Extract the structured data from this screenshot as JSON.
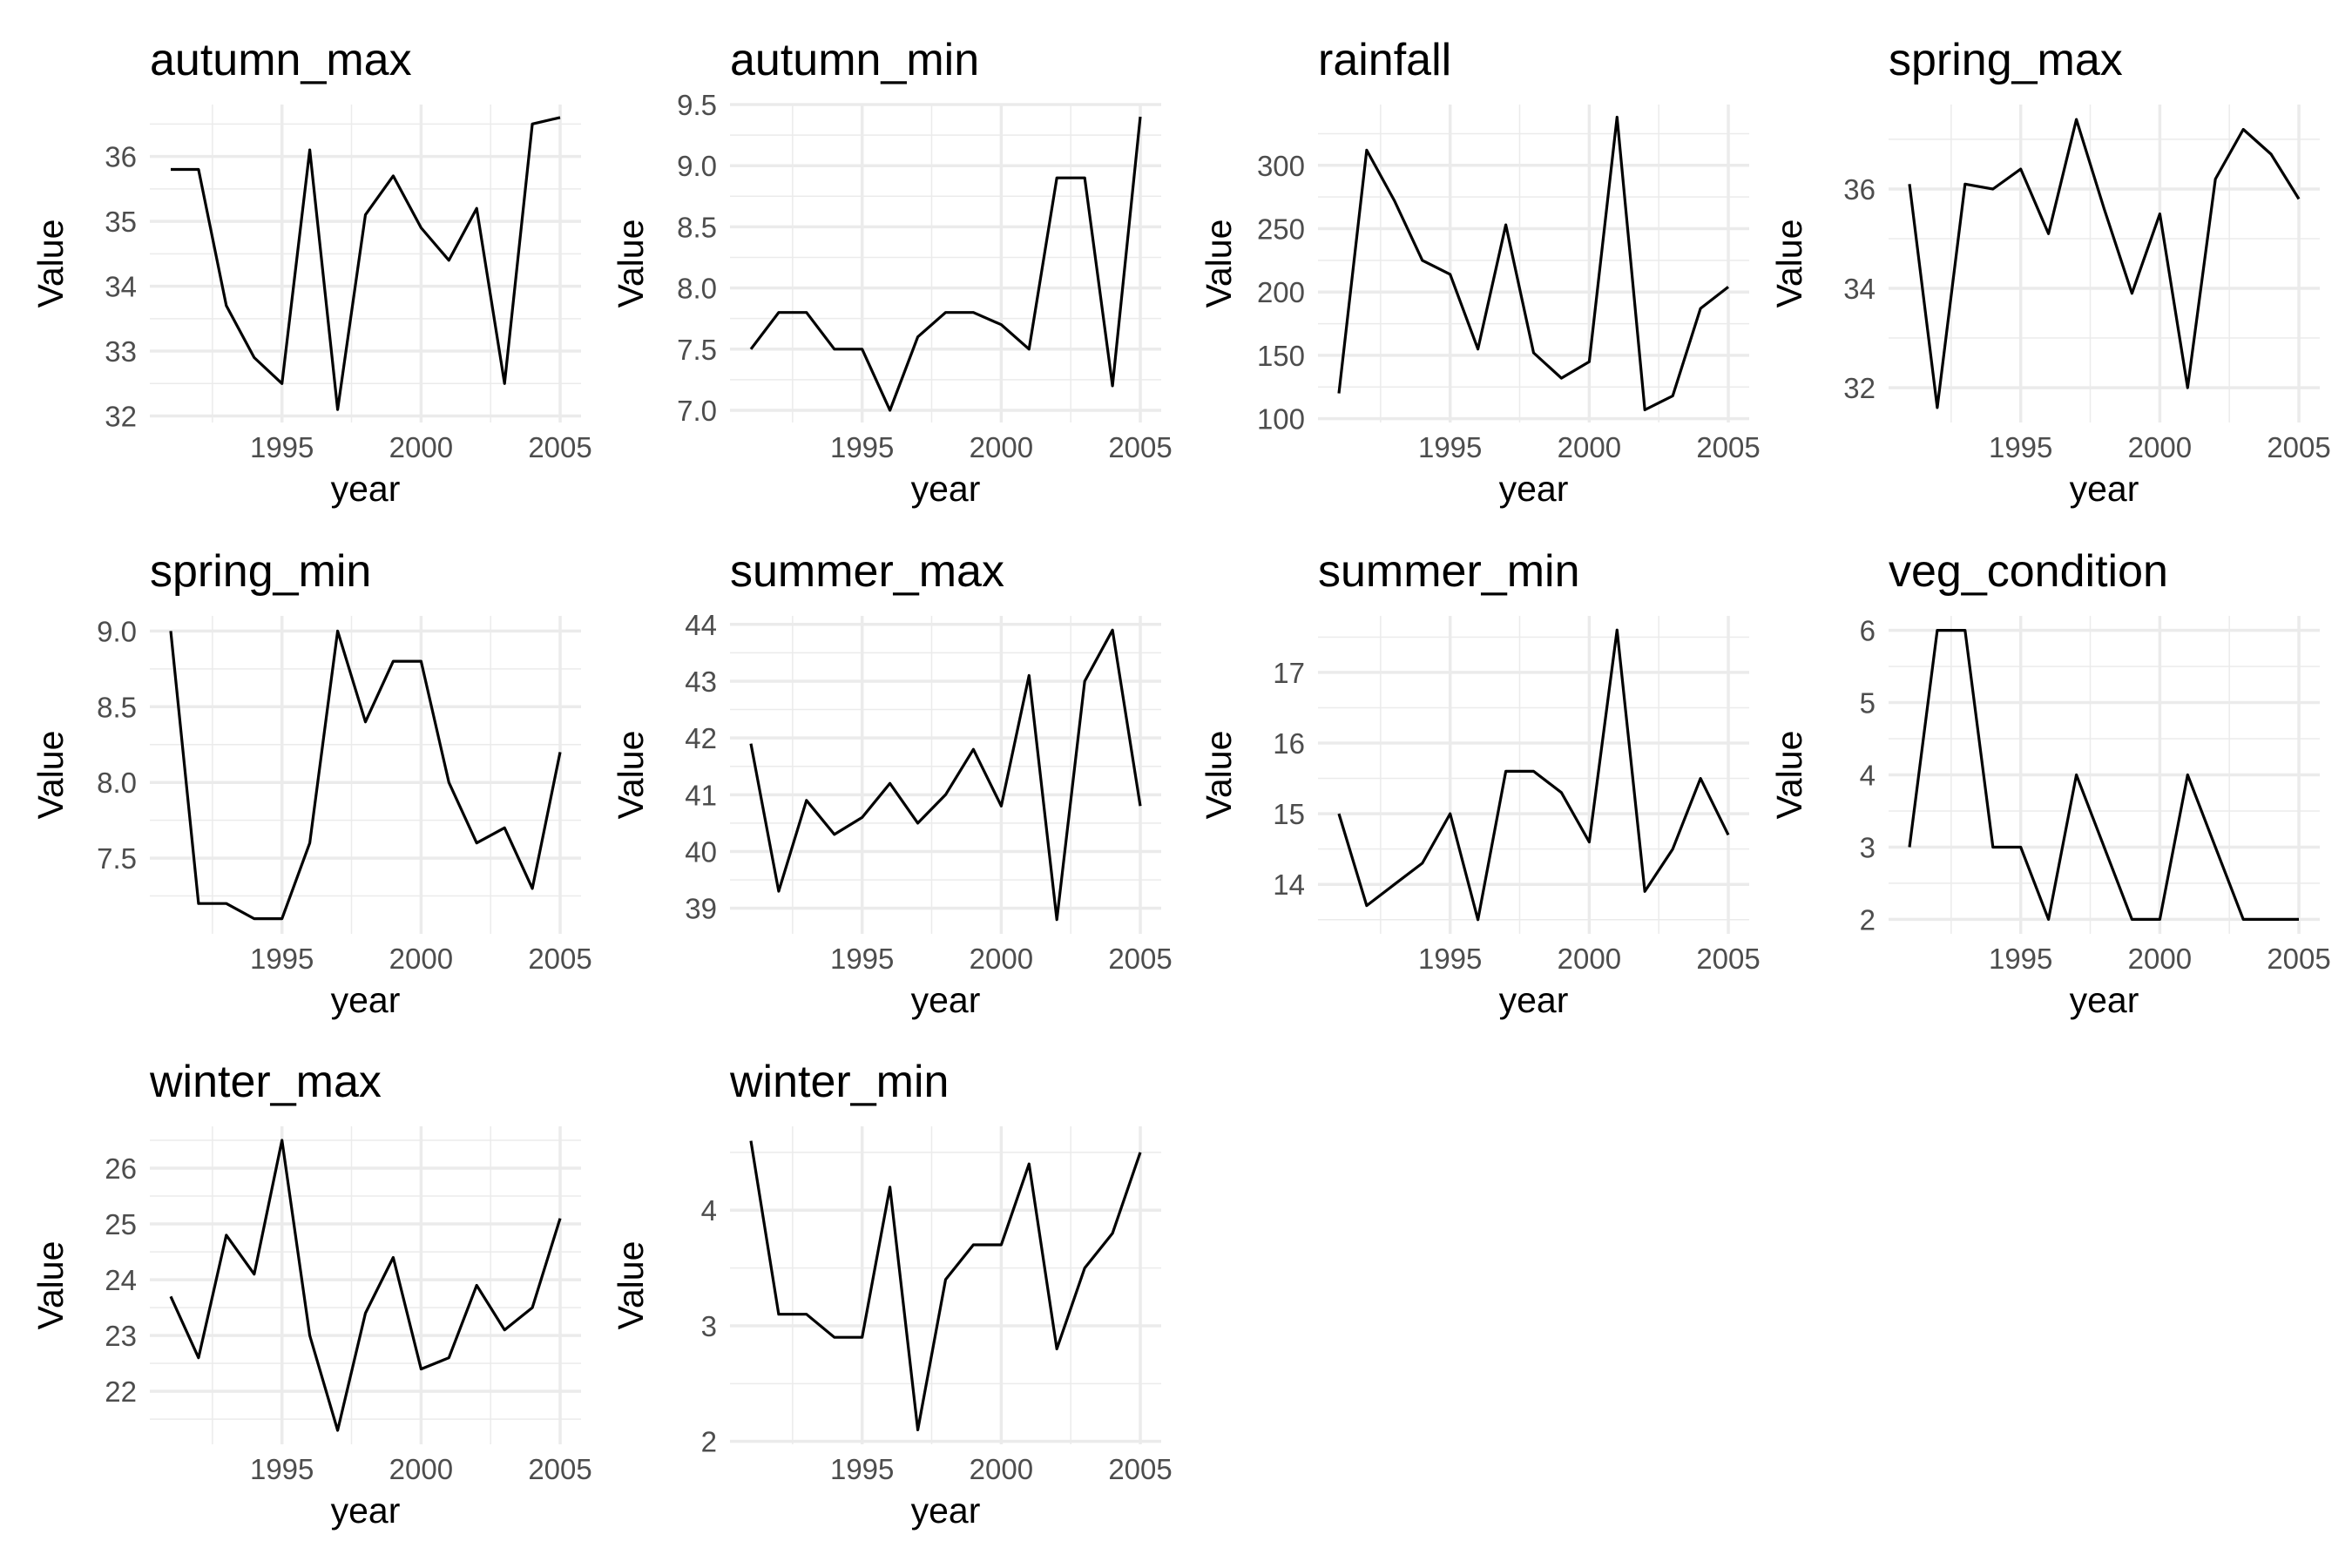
{
  "chart_data": {
    "type": "line",
    "x": [
      1991,
      1992,
      1993,
      1994,
      1995,
      1996,
      1997,
      1998,
      1999,
      2000,
      2001,
      2002,
      2003,
      2004,
      2005
    ],
    "xlabel": "year",
    "ylabel": "Value",
    "xticks": [
      1995,
      2000,
      2005
    ],
    "xlim": [
      1990.25,
      2005.75
    ],
    "grid": true,
    "line_color": "#000000",
    "grid_color": "#ebebeb",
    "panels": [
      {
        "title": "autumn_max",
        "values": [
          35.8,
          35.8,
          33.7,
          32.9,
          32.5,
          36.1,
          32.1,
          35.1,
          35.7,
          34.9,
          34.4,
          35.2,
          32.5,
          36.5,
          36.6
        ],
        "ylim": [
          31.9,
          36.8
        ],
        "yticks": [
          32,
          33,
          34,
          35,
          36
        ],
        "ytick_labels": [
          "32",
          "33",
          "34",
          "35",
          "36"
        ]
      },
      {
        "title": "autumn_min",
        "values": [
          7.5,
          7.8,
          7.8,
          7.5,
          7.5,
          7.0,
          7.6,
          7.8,
          7.8,
          7.7,
          7.5,
          8.9,
          8.9,
          7.2,
          9.4
        ],
        "ylim": [
          6.9,
          9.5
        ],
        "yticks": [
          7.0,
          7.5,
          8.0,
          8.5,
          9.0,
          9.5
        ],
        "ytick_labels": [
          "7.0",
          "7.5",
          "8.0",
          "8.5",
          "9.0",
          "9.5"
        ]
      },
      {
        "title": "rainfall",
        "values": [
          120,
          312,
          272,
          225,
          214,
          155,
          253,
          152,
          132,
          145,
          338,
          107,
          118,
          187,
          204
        ],
        "ylim": [
          97,
          348
        ],
        "yticks": [
          100,
          150,
          200,
          250,
          300
        ],
        "ytick_labels": [
          "100",
          "150",
          "200",
          "250",
          "300"
        ]
      },
      {
        "title": "spring_max",
        "values": [
          36.1,
          31.6,
          36.1,
          36.0,
          36.4,
          35.1,
          37.4,
          35.6,
          33.9,
          35.5,
          32.0,
          36.2,
          37.2,
          36.7,
          35.8
        ],
        "ylim": [
          31.3,
          37.7
        ],
        "yticks": [
          32,
          34,
          36
        ],
        "ytick_labels": [
          "32",
          "34",
          "36"
        ]
      },
      {
        "title": "spring_min",
        "values": [
          9.0,
          7.2,
          7.2,
          7.1,
          7.1,
          7.6,
          9.0,
          8.4,
          8.8,
          8.8,
          8.0,
          7.6,
          7.7,
          7.3,
          8.2
        ],
        "ylim": [
          7.0,
          9.1
        ],
        "yticks": [
          7.5,
          8.0,
          8.5,
          9.0
        ],
        "ytick_labels": [
          "7.5",
          "8.0",
          "8.5",
          "9.0"
        ]
      },
      {
        "title": "summer_max",
        "values": [
          41.9,
          39.3,
          40.9,
          40.3,
          40.6,
          41.2,
          40.5,
          41.0,
          41.8,
          40.8,
          43.1,
          38.8,
          43.0,
          43.9,
          40.8
        ],
        "ylim": [
          38.55,
          44.15
        ],
        "yticks": [
          39,
          40,
          41,
          42,
          43,
          44
        ],
        "ytick_labels": [
          "39",
          "40",
          "41",
          "42",
          "43",
          "44"
        ]
      },
      {
        "title": "summer_min",
        "values": [
          15.0,
          13.7,
          14.0,
          14.3,
          15.0,
          13.5,
          15.6,
          15.6,
          15.3,
          14.6,
          17.6,
          13.9,
          14.5,
          15.5,
          14.7
        ],
        "ylim": [
          13.3,
          17.8
        ],
        "yticks": [
          14,
          15,
          16,
          17
        ],
        "ytick_labels": [
          "14",
          "15",
          "16",
          "17"
        ]
      },
      {
        "title": "veg_condition",
        "values": [
          3,
          6,
          6,
          3,
          3,
          2,
          4,
          3,
          2,
          2,
          4,
          3,
          2,
          2,
          2
        ],
        "ylim": [
          1.8,
          6.2
        ],
        "yticks": [
          2,
          3,
          4,
          5,
          6
        ],
        "ytick_labels": [
          "2",
          "3",
          "4",
          "5",
          "6"
        ]
      },
      {
        "title": "winter_max",
        "values": [
          23.7,
          22.6,
          24.8,
          24.1,
          26.5,
          23.0,
          21.3,
          23.4,
          24.4,
          22.4,
          22.6,
          23.9,
          23.1,
          23.5,
          25.1
        ],
        "ylim": [
          21.05,
          26.75
        ],
        "yticks": [
          22,
          23,
          24,
          25,
          26
        ],
        "ytick_labels": [
          "22",
          "23",
          "24",
          "25",
          "26"
        ]
      },
      {
        "title": "winter_min",
        "values": [
          4.6,
          3.1,
          3.1,
          2.9,
          2.9,
          4.2,
          2.1,
          3.4,
          3.7,
          3.7,
          4.4,
          2.8,
          3.5,
          3.8,
          4.5
        ],
        "ylim": [
          1.975,
          4.725
        ],
        "yticks": [
          2,
          3,
          4
        ],
        "ytick_labels": [
          "2",
          "3",
          "4"
        ]
      }
    ]
  }
}
